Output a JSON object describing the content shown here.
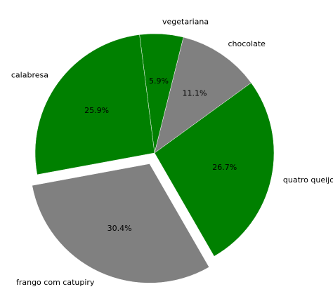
{
  "chart_data": {
    "type": "pie",
    "title": "",
    "start_angle_deg": 76,
    "direction": "counterclockwise",
    "slices": [
      {
        "label": "vegetariana",
        "value": 5.9,
        "pct_label": "5.9%",
        "color": "#008000",
        "exploded": false
      },
      {
        "label": "calabresa",
        "value": 25.9,
        "pct_label": "25.9%",
        "color": "#008000",
        "exploded": false
      },
      {
        "label": "frango com catupiry",
        "value": 30.4,
        "pct_label": "30.4%",
        "color": "#808080",
        "exploded": true
      },
      {
        "label": "quatro queijos",
        "value": 26.7,
        "pct_label": "26.7%",
        "color": "#008000",
        "exploded": false
      },
      {
        "label": "chocolate",
        "value": 11.1,
        "pct_label": "11.1%",
        "color": "#808080",
        "exploded": false
      }
    ],
    "legend": "none",
    "edge_color": "#ffffff"
  }
}
